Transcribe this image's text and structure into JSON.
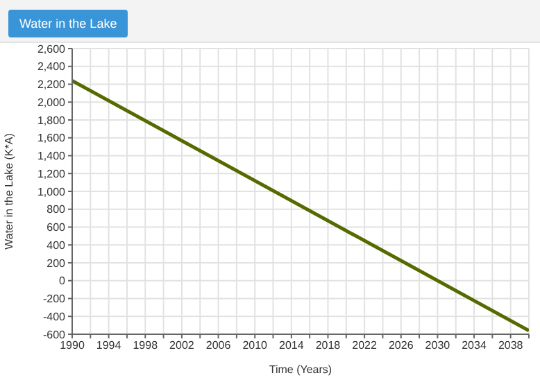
{
  "chart_data": {
    "type": "line",
    "title": "Water in the Lake",
    "xlabel": "Time (Years)",
    "ylabel": "Water in the Lake (K*A)",
    "x": [
      1990,
      2040
    ],
    "series": [
      {
        "color": "#556b00",
        "values": [
          2240,
          -560
        ]
      }
    ],
    "xlim": [
      1990,
      2040
    ],
    "xticks": [
      1990,
      {
        "value": 1992,
        "label": null
      },
      1994,
      {
        "value": 1996,
        "label": null
      },
      1998,
      {
        "value": 2000,
        "label": null
      },
      2002,
      {
        "value": 2004,
        "label": null
      },
      2006,
      {
        "value": 2008,
        "label": null
      },
      2010,
      {
        "value": 2012,
        "label": null
      },
      2014,
      {
        "value": 2016,
        "label": null
      },
      2018,
      {
        "value": 2020,
        "label": null
      },
      2022,
      {
        "value": 2024,
        "label": null
      },
      2026,
      {
        "value": 2028,
        "label": null
      },
      2030,
      {
        "value": 2032,
        "label": null
      },
      2034,
      {
        "value": 2036,
        "label": null
      },
      2038,
      {
        "value": 2040,
        "label": null
      }
    ],
    "ylim": [
      -600,
      2600
    ],
    "yticks": [
      -600,
      -400,
      -200,
      0,
      200,
      400,
      600,
      800,
      {
        "value": 1000,
        "label": "1,000"
      },
      {
        "value": 1200,
        "label": "1,200"
      },
      {
        "value": 1400,
        "label": "1,400"
      },
      {
        "value": 1600,
        "label": "1,600"
      },
      {
        "value": 1800,
        "label": "1,800"
      },
      {
        "value": 2000,
        "label": "2,000"
      },
      {
        "value": 2200,
        "label": "2,200"
      },
      {
        "value": 2400,
        "label": "2,400"
      },
      {
        "value": 2600,
        "label": "2,600"
      }
    ],
    "grid": true,
    "marker": "none",
    "line_style": "solid"
  }
}
